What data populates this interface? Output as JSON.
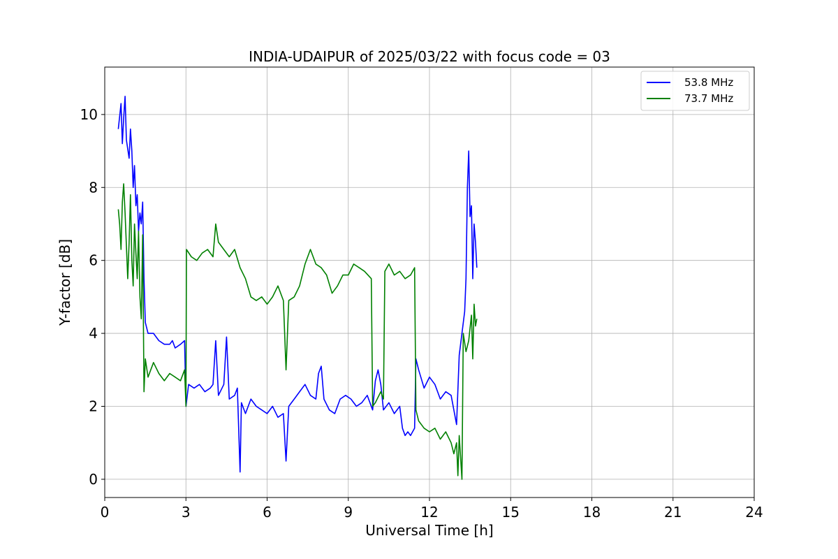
{
  "chart_data": {
    "type": "line",
    "title": "INDIA-UDAIPUR of 2025/03/22 with focus code = 03",
    "xlabel": "Universal Time [h]",
    "ylabel": "Y-factor [dB]",
    "xlim": [
      0,
      24
    ],
    "ylim": [
      -0.5,
      11.3
    ],
    "xticks": [
      0,
      3,
      6,
      9,
      12,
      15,
      18,
      21,
      24
    ],
    "yticks": [
      0,
      2,
      4,
      6,
      8,
      10
    ],
    "grid": true,
    "legend_position": "top-right",
    "series": [
      {
        "name": "53.8 MHz",
        "color": "#0000ff",
        "points": [
          [
            0.5,
            9.6
          ],
          [
            0.6,
            10.3
          ],
          [
            0.65,
            9.2
          ],
          [
            0.7,
            9.9
          ],
          [
            0.75,
            10.5
          ],
          [
            0.8,
            9.3
          ],
          [
            0.9,
            8.8
          ],
          [
            0.95,
            9.6
          ],
          [
            1.0,
            9.0
          ],
          [
            1.05,
            8.0
          ],
          [
            1.1,
            8.6
          ],
          [
            1.15,
            7.5
          ],
          [
            1.2,
            7.8
          ],
          [
            1.25,
            6.8
          ],
          [
            1.3,
            7.3
          ],
          [
            1.35,
            7.0
          ],
          [
            1.4,
            7.6
          ],
          [
            1.45,
            5.5
          ],
          [
            1.5,
            4.3
          ],
          [
            1.6,
            4.0
          ],
          [
            1.8,
            4.0
          ],
          [
            2.0,
            3.8
          ],
          [
            2.2,
            3.7
          ],
          [
            2.4,
            3.7
          ],
          [
            2.5,
            3.8
          ],
          [
            2.6,
            3.6
          ],
          [
            2.8,
            3.7
          ],
          [
            2.95,
            3.8
          ],
          [
            3.0,
            2.0
          ],
          [
            3.1,
            2.6
          ],
          [
            3.3,
            2.5
          ],
          [
            3.5,
            2.6
          ],
          [
            3.7,
            2.4
          ],
          [
            3.9,
            2.5
          ],
          [
            4.0,
            2.6
          ],
          [
            4.1,
            3.8
          ],
          [
            4.2,
            2.3
          ],
          [
            4.4,
            2.6
          ],
          [
            4.5,
            3.9
          ],
          [
            4.6,
            2.2
          ],
          [
            4.8,
            2.3
          ],
          [
            4.9,
            2.5
          ],
          [
            5.0,
            0.2
          ],
          [
            5.05,
            2.1
          ],
          [
            5.2,
            1.8
          ],
          [
            5.4,
            2.2
          ],
          [
            5.6,
            2.0
          ],
          [
            5.8,
            1.9
          ],
          [
            6.0,
            1.8
          ],
          [
            6.2,
            2.0
          ],
          [
            6.4,
            1.7
          ],
          [
            6.6,
            1.8
          ],
          [
            6.7,
            0.5
          ],
          [
            6.8,
            2.0
          ],
          [
            7.0,
            2.2
          ],
          [
            7.2,
            2.4
          ],
          [
            7.4,
            2.6
          ],
          [
            7.6,
            2.3
          ],
          [
            7.8,
            2.2
          ],
          [
            7.9,
            2.9
          ],
          [
            8.0,
            3.1
          ],
          [
            8.1,
            2.2
          ],
          [
            8.3,
            1.9
          ],
          [
            8.5,
            1.8
          ],
          [
            8.7,
            2.2
          ],
          [
            8.9,
            2.3
          ],
          [
            9.1,
            2.2
          ],
          [
            9.3,
            2.0
          ],
          [
            9.5,
            2.1
          ],
          [
            9.7,
            2.3
          ],
          [
            9.9,
            1.9
          ],
          [
            10.0,
            2.7
          ],
          [
            10.1,
            3.0
          ],
          [
            10.2,
            2.6
          ],
          [
            10.3,
            1.9
          ],
          [
            10.5,
            2.1
          ],
          [
            10.7,
            1.8
          ],
          [
            10.9,
            2.0
          ],
          [
            11.0,
            1.4
          ],
          [
            11.1,
            1.2
          ],
          [
            11.2,
            1.3
          ],
          [
            11.3,
            1.2
          ],
          [
            11.45,
            1.4
          ],
          [
            11.5,
            3.3
          ],
          [
            11.6,
            3.0
          ],
          [
            11.8,
            2.5
          ],
          [
            12.0,
            2.8
          ],
          [
            12.2,
            2.6
          ],
          [
            12.4,
            2.2
          ],
          [
            12.6,
            2.4
          ],
          [
            12.8,
            2.3
          ],
          [
            13.0,
            1.5
          ],
          [
            13.1,
            3.4
          ],
          [
            13.2,
            4.0
          ],
          [
            13.3,
            4.6
          ],
          [
            13.35,
            5.5
          ],
          [
            13.4,
            8.0
          ],
          [
            13.45,
            9.0
          ],
          [
            13.5,
            7.2
          ],
          [
            13.55,
            7.5
          ],
          [
            13.6,
            5.5
          ],
          [
            13.65,
            7.0
          ],
          [
            13.7,
            6.5
          ],
          [
            13.75,
            5.8
          ]
        ]
      },
      {
        "name": "73.7 MHz",
        "color": "#008000",
        "points": [
          [
            0.5,
            7.4
          ],
          [
            0.55,
            7.0
          ],
          [
            0.6,
            6.3
          ],
          [
            0.65,
            7.6
          ],
          [
            0.7,
            8.1
          ],
          [
            0.75,
            7.3
          ],
          [
            0.8,
            6.4
          ],
          [
            0.85,
            5.5
          ],
          [
            0.9,
            6.5
          ],
          [
            0.95,
            7.8
          ],
          [
            1.0,
            6.0
          ],
          [
            1.05,
            5.3
          ],
          [
            1.1,
            7.0
          ],
          [
            1.15,
            6.2
          ],
          [
            1.2,
            5.5
          ],
          [
            1.25,
            6.8
          ],
          [
            1.3,
            5.0
          ],
          [
            1.35,
            4.4
          ],
          [
            1.4,
            6.7
          ],
          [
            1.45,
            2.4
          ],
          [
            1.5,
            3.3
          ],
          [
            1.6,
            2.8
          ],
          [
            1.8,
            3.2
          ],
          [
            2.0,
            2.9
          ],
          [
            2.2,
            2.7
          ],
          [
            2.4,
            2.9
          ],
          [
            2.6,
            2.8
          ],
          [
            2.8,
            2.7
          ],
          [
            2.95,
            3.0
          ],
          [
            3.0,
            2.0
          ],
          [
            3.02,
            6.3
          ],
          [
            3.2,
            6.1
          ],
          [
            3.4,
            6.0
          ],
          [
            3.6,
            6.2
          ],
          [
            3.8,
            6.3
          ],
          [
            4.0,
            6.1
          ],
          [
            4.1,
            7.0
          ],
          [
            4.2,
            6.5
          ],
          [
            4.4,
            6.3
          ],
          [
            4.6,
            6.1
          ],
          [
            4.8,
            6.3
          ],
          [
            5.0,
            5.8
          ],
          [
            5.2,
            5.5
          ],
          [
            5.4,
            5.0
          ],
          [
            5.6,
            4.9
          ],
          [
            5.8,
            5.0
          ],
          [
            6.0,
            4.8
          ],
          [
            6.2,
            5.0
          ],
          [
            6.4,
            5.3
          ],
          [
            6.6,
            4.9
          ],
          [
            6.7,
            3.0
          ],
          [
            6.8,
            4.9
          ],
          [
            7.0,
            5.0
          ],
          [
            7.2,
            5.3
          ],
          [
            7.4,
            5.9
          ],
          [
            7.6,
            6.3
          ],
          [
            7.8,
            5.9
          ],
          [
            8.0,
            5.8
          ],
          [
            8.2,
            5.6
          ],
          [
            8.4,
            5.1
          ],
          [
            8.6,
            5.3
          ],
          [
            8.8,
            5.6
          ],
          [
            9.0,
            5.6
          ],
          [
            9.2,
            5.9
          ],
          [
            9.4,
            5.8
          ],
          [
            9.6,
            5.7
          ],
          [
            9.85,
            5.5
          ],
          [
            9.9,
            2.0
          ],
          [
            10.0,
            2.1
          ],
          [
            10.2,
            2.4
          ],
          [
            10.3,
            2.2
          ],
          [
            10.35,
            5.7
          ],
          [
            10.5,
            5.9
          ],
          [
            10.7,
            5.6
          ],
          [
            10.9,
            5.7
          ],
          [
            11.1,
            5.5
          ],
          [
            11.3,
            5.6
          ],
          [
            11.45,
            5.8
          ],
          [
            11.5,
            1.9
          ],
          [
            11.6,
            1.6
          ],
          [
            11.8,
            1.4
          ],
          [
            12.0,
            1.3
          ],
          [
            12.2,
            1.4
          ],
          [
            12.4,
            1.1
          ],
          [
            12.6,
            1.3
          ],
          [
            12.8,
            1.0
          ],
          [
            12.9,
            0.7
          ],
          [
            13.0,
            1.0
          ],
          [
            13.05,
            0.1
          ],
          [
            13.1,
            1.2
          ],
          [
            13.2,
            0.0
          ],
          [
            13.25,
            4.0
          ],
          [
            13.35,
            3.5
          ],
          [
            13.45,
            3.8
          ],
          [
            13.55,
            4.5
          ],
          [
            13.6,
            3.3
          ],
          [
            13.65,
            4.8
          ],
          [
            13.7,
            4.2
          ],
          [
            13.75,
            4.4
          ]
        ]
      }
    ]
  }
}
